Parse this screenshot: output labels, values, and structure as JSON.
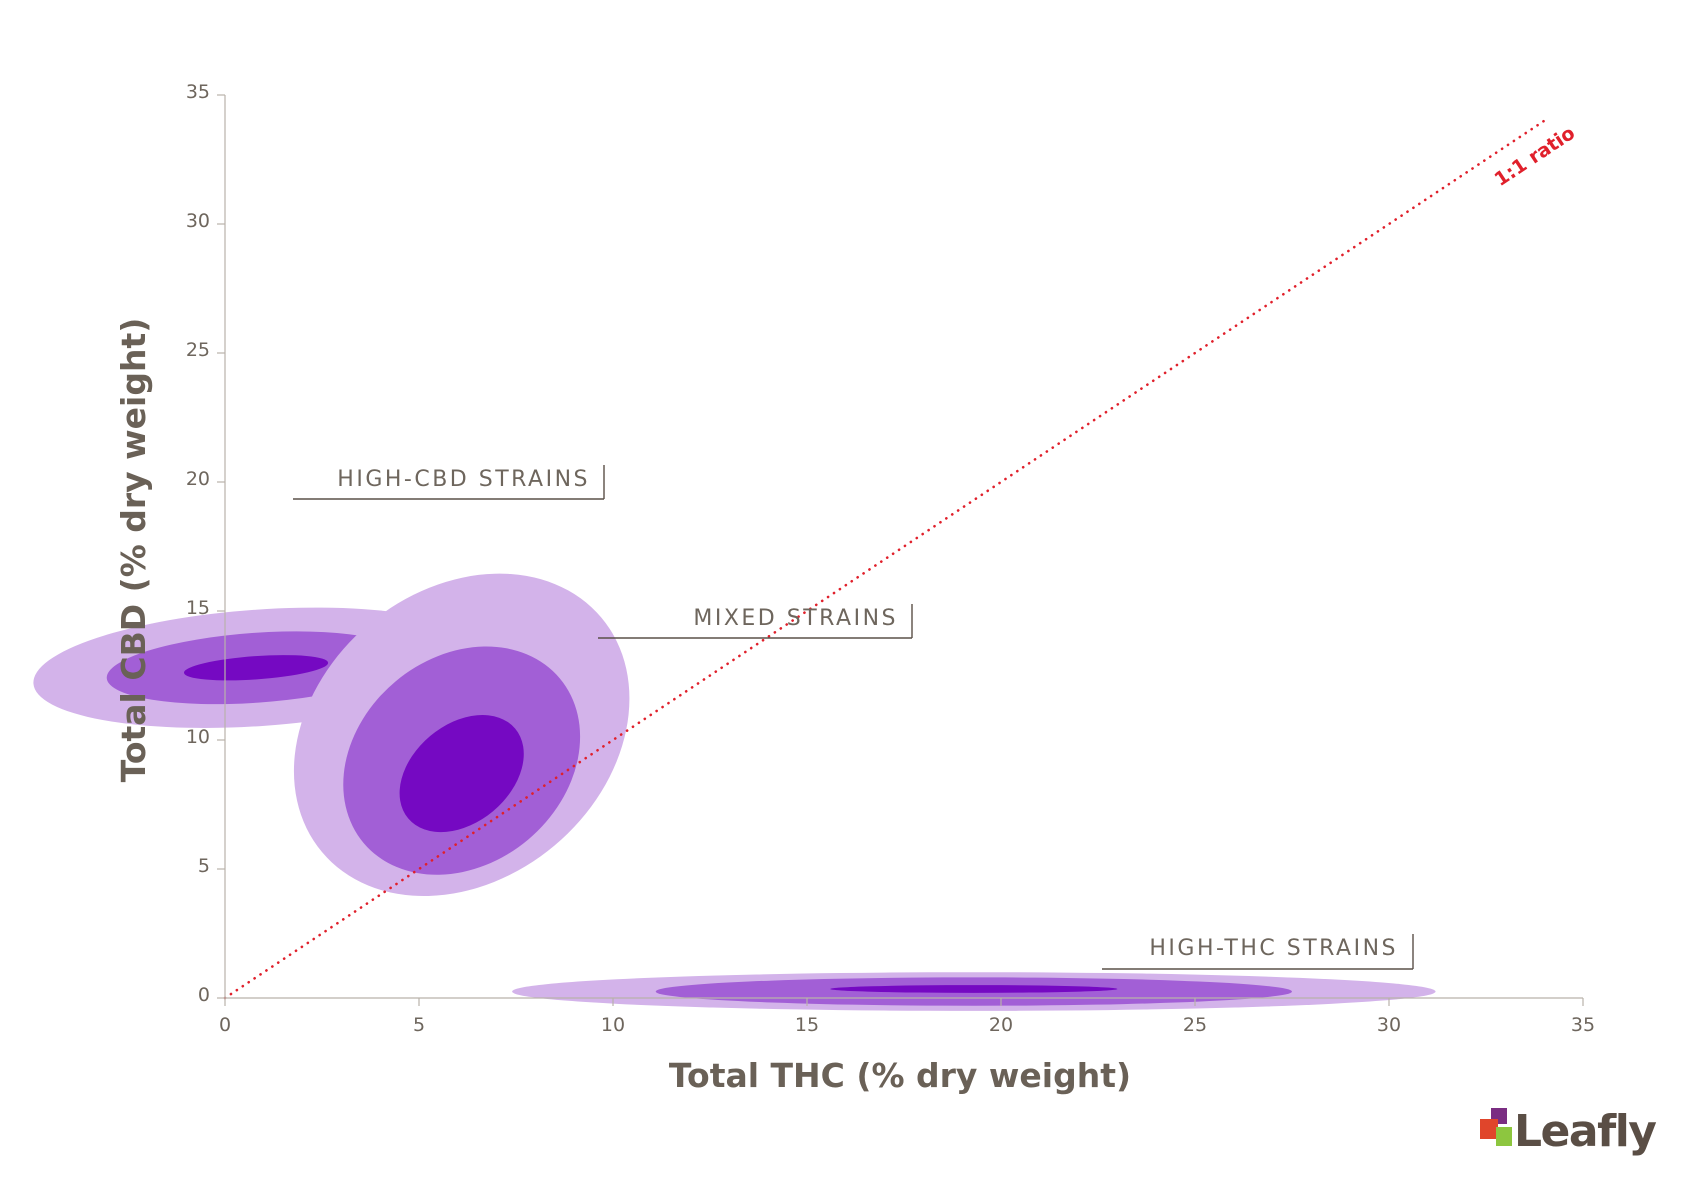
{
  "chart_data": {
    "type": "contour",
    "xlabel": "Total THC (% dry weight)",
    "ylabel": "Total CBD (% dry weight)",
    "xlim": [
      0,
      35
    ],
    "ylim": [
      0,
      35
    ],
    "xticks": [
      0,
      5,
      10,
      15,
      20,
      25,
      30,
      35
    ],
    "yticks": [
      0,
      5,
      10,
      15,
      20,
      25,
      30,
      35
    ],
    "grid": false,
    "reference_line": {
      "label": "1:1 ratio",
      "x": [
        0,
        34
      ],
      "y": [
        0,
        34
      ],
      "color": "#e0202b",
      "style": "dotted"
    },
    "level_colors": [
      "#d3b3ea",
      "#a25fd6",
      "#7509c2"
    ],
    "clusters": [
      {
        "name": "HIGH-CBD STRAINS",
        "label": "HIGH-CBD STRAINS",
        "contours": [
          {
            "cx": 0.9,
            "cy": 12.8,
            "rx": 1.5,
            "ry": 8.8,
            "angle": 86
          },
          {
            "cx": 0.8,
            "cy": 12.8,
            "rx": 0.9,
            "ry": 5.8,
            "angle": 86
          },
          {
            "cx": 0.8,
            "cy": 12.8,
            "rx": 0.3,
            "ry": 2.8,
            "angle": 86
          }
        ]
      },
      {
        "name": "MIXED STRAINS",
        "label": "MIXED STRAINS",
        "contours": [
          {
            "cx": 6.1,
            "cy": 10.2,
            "rx": 4.7,
            "ry": 5.6,
            "angle": -40
          },
          {
            "cx": 6.1,
            "cy": 9.2,
            "rx": 3.3,
            "ry": 4.0,
            "angle": -40
          },
          {
            "cx": 6.1,
            "cy": 8.7,
            "rx": 1.8,
            "ry": 1.9,
            "angle": -40
          }
        ]
      },
      {
        "name": "HIGH-THC STRAINS",
        "label": "HIGH-THC STRAINS",
        "contours": [
          {
            "cx": 19.3,
            "cy": 0.25,
            "rx": 11.9,
            "ry": 0.75,
            "angle": 0
          },
          {
            "cx": 19.3,
            "cy": 0.25,
            "rx": 8.2,
            "ry": 0.55,
            "angle": 0
          },
          {
            "cx": 19.3,
            "cy": 0.35,
            "rx": 3.7,
            "ry": 0.15,
            "angle": 0
          }
        ]
      }
    ]
  },
  "logo": {
    "text": "Leafly",
    "colors": [
      "#7a2d82",
      "#e0452b",
      "#8dc63f"
    ]
  }
}
